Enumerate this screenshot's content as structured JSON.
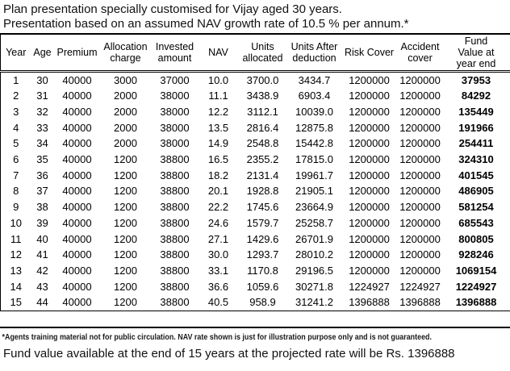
{
  "colors": {
    "text": "#000000",
    "background": "#ffffff",
    "border": "#000000"
  },
  "title": {
    "line1": "Plan presentation specially customised for Vijay aged 30 years.",
    "line2": "Presentation based on an assumed NAV growth rate of 10.5 % per annum.*"
  },
  "table": {
    "columns": [
      "Year",
      "Age",
      "Premium",
      "Allocation charge",
      "Invested amount",
      "NAV",
      "Units allocated",
      "Units After deduction",
      "Risk Cover",
      "Accident cover",
      "Fund Value at year end"
    ],
    "rows": [
      [
        "1",
        "30",
        "40000",
        "3000",
        "37000",
        "10.0",
        "3700.0",
        "3434.7",
        "1200000",
        "1200000",
        "37953"
      ],
      [
        "2",
        "31",
        "40000",
        "2000",
        "38000",
        "11.1",
        "3438.9",
        "6903.4",
        "1200000",
        "1200000",
        "84292"
      ],
      [
        "3",
        "32",
        "40000",
        "2000",
        "38000",
        "12.2",
        "3112.1",
        "10039.0",
        "1200000",
        "1200000",
        "135449"
      ],
      [
        "4",
        "33",
        "40000",
        "2000",
        "38000",
        "13.5",
        "2816.4",
        "12875.8",
        "1200000",
        "1200000",
        "191966"
      ],
      [
        "5",
        "34",
        "40000",
        "2000",
        "38000",
        "14.9",
        "2548.8",
        "15442.8",
        "1200000",
        "1200000",
        "254411"
      ],
      [
        "6",
        "35",
        "40000",
        "1200",
        "38800",
        "16.5",
        "2355.2",
        "17815.0",
        "1200000",
        "1200000",
        "324310"
      ],
      [
        "7",
        "36",
        "40000",
        "1200",
        "38800",
        "18.2",
        "2131.4",
        "19961.7",
        "1200000",
        "1200000",
        "401545"
      ],
      [
        "8",
        "37",
        "40000",
        "1200",
        "38800",
        "20.1",
        "1928.8",
        "21905.1",
        "1200000",
        "1200000",
        "486905"
      ],
      [
        "9",
        "38",
        "40000",
        "1200",
        "38800",
        "22.2",
        "1745.6",
        "23664.9",
        "1200000",
        "1200000",
        "581254"
      ],
      [
        "10",
        "39",
        "40000",
        "1200",
        "38800",
        "24.6",
        "1579.7",
        "25258.7",
        "1200000",
        "1200000",
        "685543"
      ],
      [
        "11",
        "40",
        "40000",
        "1200",
        "38800",
        "27.1",
        "1429.6",
        "26701.9",
        "1200000",
        "1200000",
        "800805"
      ],
      [
        "12",
        "41",
        "40000",
        "1200",
        "38800",
        "30.0",
        "1293.7",
        "28010.2",
        "1200000",
        "1200000",
        "928246"
      ],
      [
        "13",
        "42",
        "40000",
        "1200",
        "38800",
        "33.1",
        "1170.8",
        "29196.5",
        "1200000",
        "1200000",
        "1069154"
      ],
      [
        "14",
        "43",
        "40000",
        "1200",
        "38800",
        "36.6",
        "1059.6",
        "30271.8",
        "1224927",
        "1224927",
        "1224927"
      ],
      [
        "15",
        "44",
        "40000",
        "1200",
        "38800",
        "40.5",
        "958.9",
        "31241.2",
        "1396888",
        "1396888",
        "1396888"
      ]
    ]
  },
  "footer": {
    "footnote": "*Agents training material not for public circulation. NAV rate shown is just for illustration purpose only and is not guaranteed.",
    "summary": "Fund value available at the end of 15 years at the projected rate will be Rs. 1396888"
  }
}
